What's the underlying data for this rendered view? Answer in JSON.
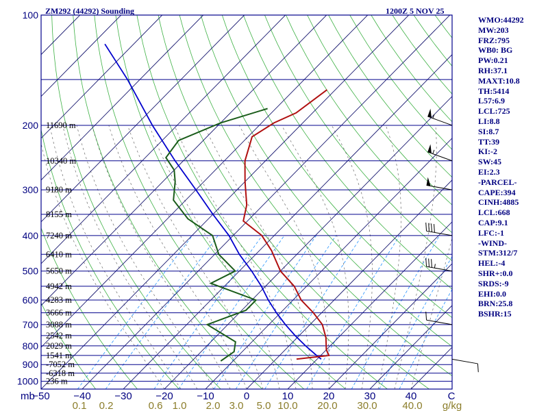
{
  "header": {
    "title": "ZM292 (44292) Sounding",
    "time": "1200Z  5 NOV 25"
  },
  "indices": [
    "WMO:44292",
    "MW:203",
    "FRZ:795",
    "WB0: BG",
    "PW:0.21",
    "RH:37.1",
    "MAXT:10.8",
    "TH:5414",
    "L57:6.9",
    "LCL:725",
    "LI:8.8",
    "SI:8.7",
    "TT:39",
    "KI:-2",
    "SW:45",
    "EI:2.3",
    "-PARCEL-",
    "CAPE:394",
    "CINH:4885",
    "LCL:668",
    "CAP:9.1",
    "LFC:-1",
    "-WIND-",
    "STM:312/7",
    "HEL:-4",
    "SHR+:0.0",
    "SRDS:-9",
    "EHI:0.0",
    "BRN:25.8",
    "BSHR:15"
  ],
  "colors": {
    "background": "#ffffff",
    "isobar": "#00008b",
    "isotherm": "#191970",
    "dry_adiabat": "#3cb043",
    "moist_adiabat": "#6b6b6b",
    "mixing_ratio": "#1e90ff",
    "temperature": "#b01010",
    "dewpoint": "#1a5c1a",
    "parcel": "#0000cd",
    "labels": "#000080",
    "mixing_labels": "#8b7d2a"
  },
  "chart_data": {
    "type": "skew-t",
    "title": "ZM292 (44292) Sounding",
    "pressure_levels": [
      100,
      200,
      300,
      400,
      500,
      600,
      700,
      800,
      900,
      1000
    ],
    "pressure_range": [
      100,
      1050
    ],
    "temperature_ticks": [
      -50,
      -40,
      -30,
      -20,
      -10,
      0,
      10,
      20,
      30,
      40
    ],
    "temperature_range": [
      -50,
      50
    ],
    "mixing_ratio_ticks": [
      "0.1",
      "0.2",
      "0.6",
      "1.0",
      "2.0",
      "3.0",
      "5.0",
      "10.0",
      "20.0",
      "30.0",
      "40.0"
    ],
    "mixing_ratio_unit": "g/kg",
    "x_axis_prefix": "mb",
    "x_axis_suffix": "C",
    "height_labels": [
      {
        "p": 200,
        "label": "11690 m"
      },
      {
        "p": 250,
        "label": "10340 m"
      },
      {
        "p": 300,
        "label": "9180 m"
      },
      {
        "p": 350,
        "label": "8155 m"
      },
      {
        "p": 400,
        "label": "7240 m"
      },
      {
        "p": 450,
        "label": "6410 m"
      },
      {
        "p": 500,
        "label": "5650 m"
      },
      {
        "p": 550,
        "label": "4942 m"
      },
      {
        "p": 600,
        "label": "4283 m"
      },
      {
        "p": 650,
        "label": "3666 m"
      },
      {
        "p": 700,
        "label": "3088 m"
      },
      {
        "p": 750,
        "label": "2542 m"
      },
      {
        "p": 800,
        "label": "2029 m"
      },
      {
        "p": 850,
        "label": "1541 m"
      },
      {
        "p": 900,
        "label": "-7052 m"
      },
      {
        "p": 950,
        "label": "-6318 m"
      },
      {
        "p": 1000,
        "label": "236 m"
      }
    ],
    "temperature_profile": [
      {
        "p": 160,
        "t": -52
      },
      {
        "p": 185,
        "t": -54
      },
      {
        "p": 197,
        "t": -57
      },
      {
        "p": 215,
        "t": -59
      },
      {
        "p": 250,
        "t": -55
      },
      {
        "p": 285,
        "t": -50
      },
      {
        "p": 330,
        "t": -44
      },
      {
        "p": 365,
        "t": -41
      },
      {
        "p": 400,
        "t": -33
      },
      {
        "p": 440,
        "t": -27
      },
      {
        "p": 500,
        "t": -20
      },
      {
        "p": 550,
        "t": -13
      },
      {
        "p": 600,
        "t": -8
      },
      {
        "p": 650,
        "t": -2
      },
      {
        "p": 700,
        "t": 3
      },
      {
        "p": 760,
        "t": 7
      },
      {
        "p": 820,
        "t": 10
      },
      {
        "p": 850,
        "t": 12
      },
      {
        "p": 870,
        "t": 5
      }
    ],
    "dewpoint_profile": [
      {
        "p": 180,
        "t": -62
      },
      {
        "p": 197,
        "t": -70
      },
      {
        "p": 220,
        "t": -76
      },
      {
        "p": 245,
        "t": -75
      },
      {
        "p": 265,
        "t": -70
      },
      {
        "p": 285,
        "t": -67
      },
      {
        "p": 320,
        "t": -63
      },
      {
        "p": 360,
        "t": -55
      },
      {
        "p": 400,
        "t": -45
      },
      {
        "p": 450,
        "t": -39
      },
      {
        "p": 500,
        "t": -31
      },
      {
        "p": 540,
        "t": -34
      },
      {
        "p": 600,
        "t": -19
      },
      {
        "p": 640,
        "t": -19
      },
      {
        "p": 700,
        "t": -25
      },
      {
        "p": 780,
        "t": -14
      },
      {
        "p": 830,
        "t": -12
      },
      {
        "p": 880,
        "t": -13
      }
    ],
    "parcel_profile": [
      {
        "p": 120,
        "t": -117
      },
      {
        "p": 150,
        "t": -103
      },
      {
        "p": 200,
        "t": -86
      },
      {
        "p": 250,
        "t": -72
      },
      {
        "p": 300,
        "t": -60
      },
      {
        "p": 350,
        "t": -50
      },
      {
        "p": 400,
        "t": -41
      },
      {
        "p": 450,
        "t": -34
      },
      {
        "p": 500,
        "t": -27
      },
      {
        "p": 550,
        "t": -21
      },
      {
        "p": 600,
        "t": -16
      },
      {
        "p": 650,
        "t": -11
      },
      {
        "p": 700,
        "t": -6
      },
      {
        "p": 750,
        "t": -1
      },
      {
        "p": 800,
        "t": 4
      },
      {
        "p": 850,
        "t": 9
      },
      {
        "p": 870,
        "t": 11
      }
    ],
    "wind_barbs": [
      {
        "p": 200,
        "dir": 290,
        "spd": 55
      },
      {
        "p": 250,
        "dir": 290,
        "spd": 55
      },
      {
        "p": 300,
        "dir": 280,
        "spd": 50
      },
      {
        "p": 400,
        "dir": 280,
        "spd": 40
      },
      {
        "p": 500,
        "dir": 280,
        "spd": 35
      },
      {
        "p": 700,
        "dir": 280,
        "spd": 10
      },
      {
        "p": 870,
        "dir": 100,
        "spd": 10
      }
    ]
  }
}
